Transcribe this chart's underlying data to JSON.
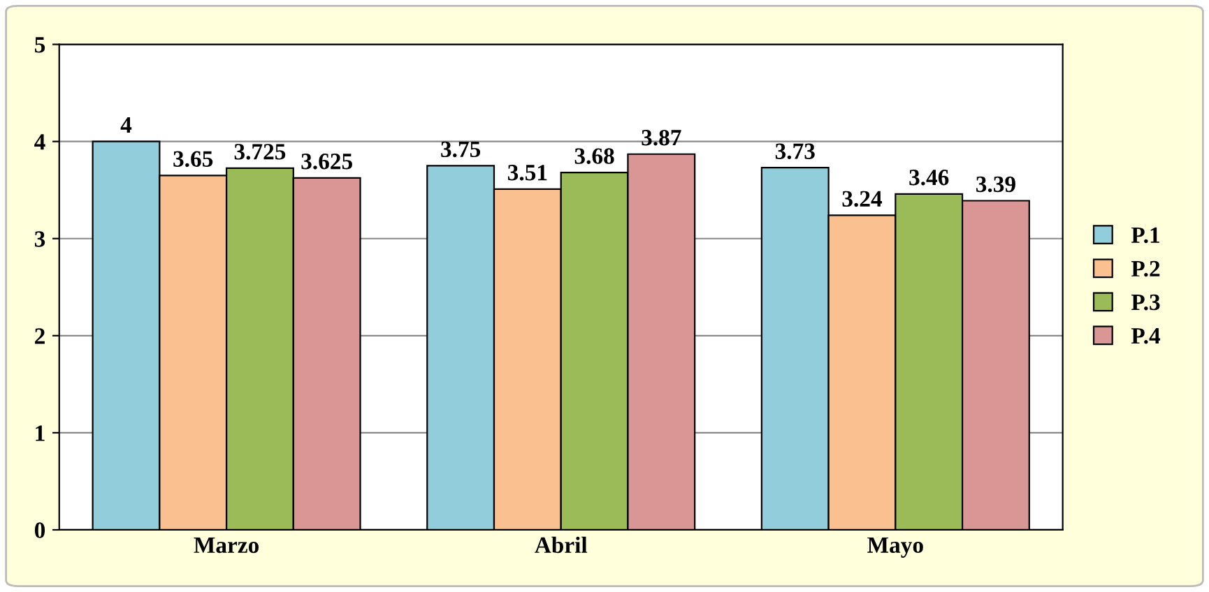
{
  "chart_data": {
    "type": "bar",
    "categories": [
      "Marzo",
      "Abril",
      "Mayo"
    ],
    "series": [
      {
        "name": "P.1",
        "color": "#92cddc",
        "values": [
          4,
          3.75,
          3.73
        ]
      },
      {
        "name": "P.2",
        "color": "#fac090",
        "values": [
          3.65,
          3.51,
          3.24
        ]
      },
      {
        "name": "P.3",
        "color": "#9bbb59",
        "values": [
          3.725,
          3.68,
          3.46
        ]
      },
      {
        "name": "P.4",
        "color": "#d99694",
        "values": [
          3.625,
          3.87,
          3.39
        ]
      }
    ],
    "ylim": [
      0,
      5
    ],
    "yticks": [
      0,
      1,
      2,
      3,
      4,
      5
    ],
    "grid": "y",
    "legend": "right",
    "data_labels": true
  }
}
